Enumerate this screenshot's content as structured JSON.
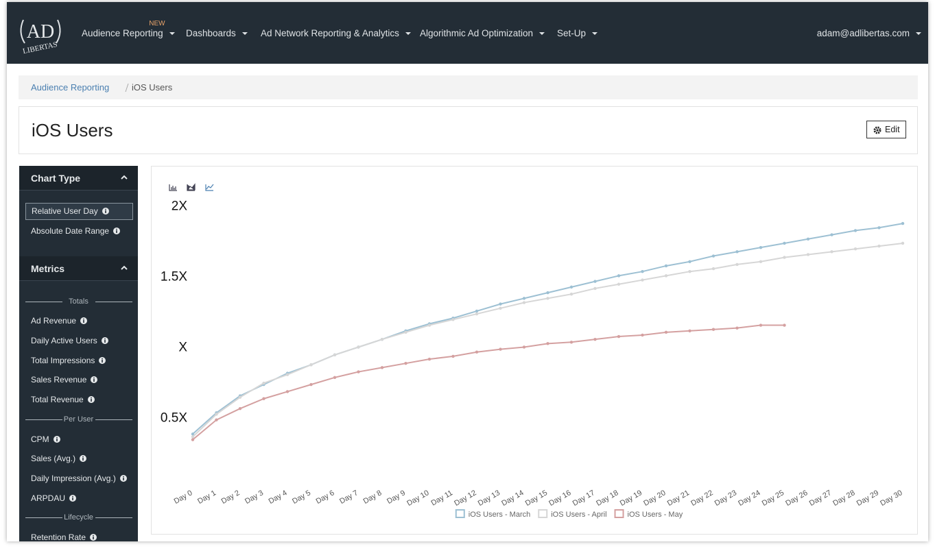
{
  "nav": {
    "logo_top": "AD",
    "logo_bottom": "LIBERTAS",
    "items": [
      {
        "label": "Audience Reporting",
        "badge": "NEW"
      },
      {
        "label": "Dashboards"
      },
      {
        "label": "Ad Network Reporting & Analytics"
      },
      {
        "label": "Algorithmic Ad Optimization"
      },
      {
        "label": "Set-Up"
      }
    ],
    "user": "adam@adlibertas.com"
  },
  "breadcrumb": [
    "Audience Reporting",
    "iOS Users"
  ],
  "page_title": "iOS Users",
  "edit_button": "Edit",
  "sidebar": {
    "chart_type": {
      "title": "Chart Type",
      "items": [
        "Relative User Day",
        "Absolute Date Range"
      ]
    },
    "metrics": {
      "title": "Metrics",
      "groups": [
        {
          "label": "Totals",
          "items": [
            "Ad Revenue",
            "Daily Active Users",
            "Total Impressions",
            "Sales Revenue",
            "Total Revenue"
          ]
        },
        {
          "label": "Per User",
          "items": [
            "CPM",
            "Sales (Avg.)",
            "Daily Impression (Avg.)",
            "ARPDAU"
          ]
        },
        {
          "label": "Lifecycle",
          "items": [
            "Retention Rate"
          ]
        }
      ]
    }
  },
  "chart_data": {
    "type": "line",
    "categories": [
      "Day 0",
      "Day 1",
      "Day 2",
      "Day 3",
      "Day 4",
      "Day 5",
      "Day 6",
      "Day 7",
      "Day 8",
      "Day 9",
      "Day 10",
      "Day 11",
      "Day 12",
      "Day 13",
      "Day 14",
      "Day 15",
      "Day 16",
      "Day 17",
      "Day 18",
      "Day 19",
      "Day 20",
      "Day 21",
      "Day 22",
      "Day 23",
      "Day 24",
      "Day 25",
      "Day 26",
      "Day 27",
      "Day 28",
      "Day 29",
      "Day 30"
    ],
    "series": [
      {
        "name": "iOS Users - March",
        "color": "#9dc0d3",
        "values": [
          0.38,
          0.53,
          0.65,
          0.73,
          0.81,
          0.87,
          0.94,
          0.995,
          1.05,
          1.11,
          1.16,
          1.2,
          1.25,
          1.3,
          1.34,
          1.38,
          1.42,
          1.46,
          1.5,
          1.53,
          1.57,
          1.6,
          1.64,
          1.67,
          1.7,
          1.73,
          1.76,
          1.79,
          1.82,
          1.84,
          1.87
        ]
      },
      {
        "name": "iOS Users - April",
        "color": "#d6d6d6",
        "values": [
          0.36,
          0.52,
          0.64,
          0.74,
          0.8,
          0.87,
          0.94,
          0.995,
          1.05,
          1.1,
          1.15,
          1.19,
          1.23,
          1.27,
          1.31,
          1.34,
          1.37,
          1.41,
          1.44,
          1.47,
          1.5,
          1.53,
          1.55,
          1.58,
          1.6,
          1.63,
          1.65,
          1.67,
          1.69,
          1.71,
          1.73
        ]
      },
      {
        "name": "iOS Users - May",
        "color": "#d4a0a0",
        "values": [
          0.34,
          0.48,
          0.56,
          0.63,
          0.68,
          0.73,
          0.78,
          0.82,
          0.85,
          0.88,
          0.91,
          0.93,
          0.96,
          0.98,
          0.995,
          1.02,
          1.03,
          1.05,
          1.07,
          1.08,
          1.1,
          1.11,
          1.12,
          1.13,
          1.15,
          1.15,
          null,
          null,
          null,
          null,
          null
        ]
      }
    ],
    "ylim": [
      0.1,
      2.05
    ],
    "yticks": [
      {
        "value": 0.5,
        "label": "0.5X"
      },
      {
        "value": 1,
        "label": "X"
      },
      {
        "value": 1.5,
        "label": "1.5X"
      },
      {
        "value": 2,
        "label": "2X"
      }
    ],
    "grid": false,
    "legend": "bottom"
  }
}
